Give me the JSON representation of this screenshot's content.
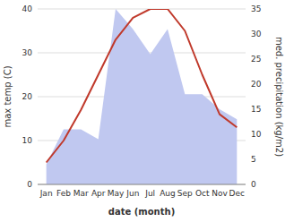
{
  "chart_data": {
    "type": "line",
    "xlabel": "date (month)",
    "ylabel": "max temp (C)",
    "y2label": "med. precipitation (kg/m2)",
    "categories": [
      "Jan",
      "Feb",
      "Mar",
      "Apr",
      "May",
      "Jun",
      "Jul",
      "Aug",
      "Sep",
      "Oct",
      "Nov",
      "Dec"
    ],
    "series": [
      {
        "type": "area",
        "axis": "y2",
        "color": "#c0c8f0",
        "values": [
          4,
          11,
          11,
          9,
          35,
          31,
          26,
          31,
          18,
          18,
          15,
          13
        ]
      },
      {
        "type": "line",
        "color": "#c0392b",
        "values": [
          5,
          10,
          17,
          25,
          33,
          38,
          40,
          40,
          35,
          25,
          16,
          13
        ]
      }
    ],
    "ylim": [
      0,
      40
    ],
    "yticks": [
      0,
      10,
      20,
      30,
      40
    ],
    "y2lim": [
      0,
      35
    ],
    "y2ticks": [
      0,
      5,
      10,
      15,
      20,
      25,
      30,
      35
    ],
    "grid": true
  }
}
